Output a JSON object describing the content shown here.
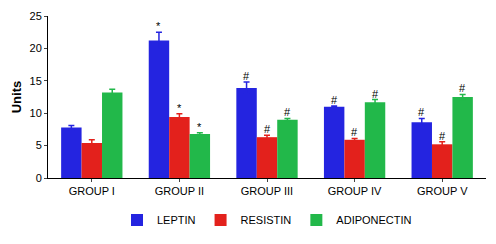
{
  "chart_data": {
    "type": "bar",
    "y_label": "Units",
    "categories": [
      "GROUP I",
      "GROUP II",
      "GROUP III",
      "GROUP IV",
      "GROUP V"
    ],
    "series": [
      {
        "name": "LEPTIN",
        "color": "#2424e0",
        "values": [
          7.8,
          21.2,
          13.9,
          11.0,
          8.6
        ],
        "errors": [
          0.3,
          1.3,
          0.9,
          0.1,
          0.6
        ],
        "annotations": [
          null,
          "*",
          "#",
          "#",
          "#"
        ]
      },
      {
        "name": "RESISTIN",
        "color": "#e3211c",
        "values": [
          5.4,
          9.4,
          6.3,
          5.9,
          5.2
        ],
        "errors": [
          0.5,
          0.5,
          0.3,
          0.2,
          0.4
        ],
        "annotations": [
          null,
          "*",
          "#",
          "#",
          "#"
        ]
      },
      {
        "name": "ADIPONECTIN",
        "color": "#22b84a",
        "values": [
          13.2,
          6.8,
          9.0,
          11.7,
          12.5
        ],
        "errors": [
          0.5,
          0.2,
          0.2,
          0.4,
          0.4
        ],
        "annotations": [
          null,
          "*",
          "#",
          "#",
          "#"
        ]
      }
    ],
    "ylim": [
      0,
      25
    ],
    "yticks": [
      0,
      5,
      10,
      15,
      20,
      25
    ],
    "grid": false,
    "legend": "bottom"
  }
}
